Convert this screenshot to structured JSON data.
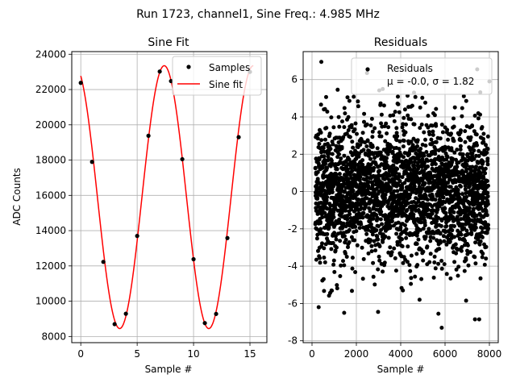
{
  "figure": {
    "suptitle": "Run 1723, channel1, Sine Freq.: 4.985 MHz"
  },
  "chart_data": [
    {
      "type": "line",
      "title": "Sine Fit",
      "xlabel": "Sample #",
      "ylabel": "ADC Counts",
      "xlim": [
        -0.8,
        16.5
      ],
      "ylim": [
        7650,
        24150
      ],
      "xticks": [
        0,
        5,
        10,
        15
      ],
      "yticks": [
        8000,
        10000,
        12000,
        14000,
        16000,
        18000,
        20000,
        22000,
        24000
      ],
      "grid": true,
      "legend_position": "upper right",
      "sine_fit": {
        "mean": 15900,
        "amplitude": 7450,
        "period": 7.9,
        "phase_sample": 7.4
      },
      "series": [
        {
          "name": "Samples",
          "style": "markers",
          "color": "#000000",
          "x": [
            0,
            1,
            2,
            3,
            4,
            5,
            6,
            7,
            8,
            9,
            10,
            11,
            12,
            13,
            14,
            15
          ],
          "y": [
            22380,
            17900,
            12230,
            8700,
            9290,
            13700,
            19380,
            23020,
            22480,
            18050,
            12380,
            8760,
            9280,
            13580,
            19300,
            23000
          ]
        },
        {
          "name": "Sine fit",
          "style": "line",
          "color": "#ff0000",
          "x_range": [
            0,
            15.3
          ]
        }
      ]
    },
    {
      "type": "scatter",
      "title": "Residuals",
      "xlabel": "Sample #",
      "ylabel": "",
      "xlim": [
        -400,
        8400
      ],
      "ylim": [
        -8.1,
        7.5
      ],
      "xticks": [
        0,
        2000,
        4000,
        6000,
        8000
      ],
      "yticks": [
        -8,
        -6,
        -4,
        -2,
        0,
        2,
        4,
        6
      ],
      "grid": true,
      "legend_position": "upper right",
      "legend_lines": [
        "Residuals",
        "μ = -0.0, σ = 1.82"
      ],
      "series": [
        {
          "name": "Residuals",
          "style": "markers",
          "color": "#000000",
          "n_points": 8000,
          "mean": -0.0,
          "sigma": 1.82,
          "x_range": [
            150,
            7950
          ],
          "outliers": [
            {
              "x": 420,
              "y": 6.95
            },
            {
              "x": 2480,
              "y": 6.35
            },
            {
              "x": 7450,
              "y": 6.55
            },
            {
              "x": 5850,
              "y": -7.3
            },
            {
              "x": 7350,
              "y": -6.85
            },
            {
              "x": 7540,
              "y": -6.85
            },
            {
              "x": 300,
              "y": -6.2
            },
            {
              "x": 1450,
              "y": -6.5
            },
            {
              "x": 2980,
              "y": -6.45
            },
            {
              "x": 4850,
              "y": -5.8
            },
            {
              "x": 5700,
              "y": -6.55
            },
            {
              "x": 6950,
              "y": -5.85
            },
            {
              "x": 8000,
              "y": 5.9
            },
            {
              "x": 4600,
              "y": 5.3
            }
          ]
        }
      ]
    }
  ]
}
